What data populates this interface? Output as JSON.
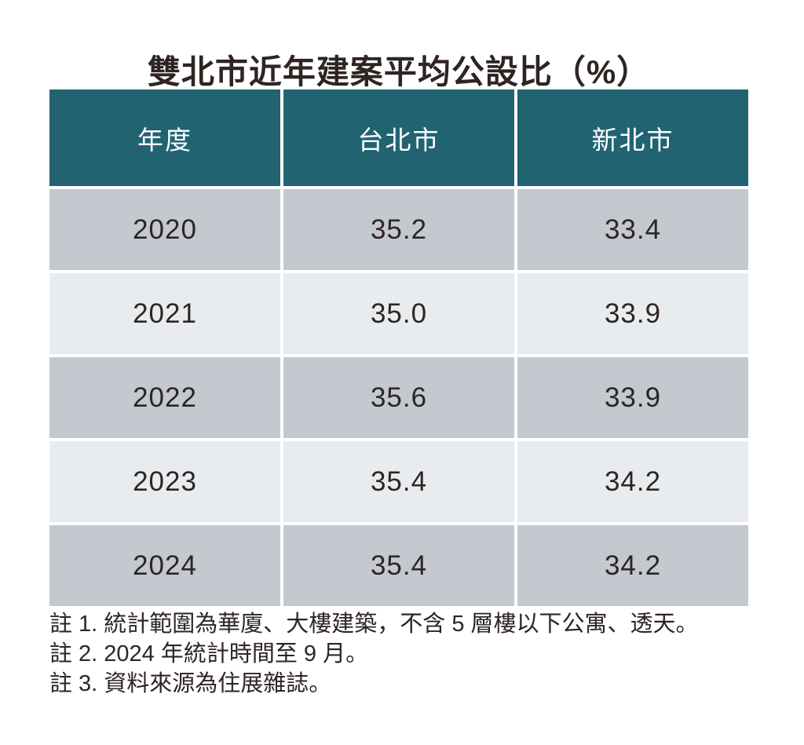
{
  "title": "雙北市近年建案平均公設比（%）",
  "table": {
    "headers": [
      "年度",
      "台北市",
      "新北市"
    ],
    "rows": [
      [
        "2020",
        "35.2",
        "33.4"
      ],
      [
        "2021",
        "35.0",
        "33.9"
      ],
      [
        "2022",
        "35.6",
        "33.9"
      ],
      [
        "2023",
        "35.4",
        "34.2"
      ],
      [
        "2024",
        "35.4",
        "34.2"
      ]
    ]
  },
  "notes": [
    "註 1. 統計範圍為華廈、大樓建築，不含 5 層樓以下公寓、透天。",
    "註 2. 2024 年統計時間至 9 月。",
    "註 3. 資料來源為住展雜誌。"
  ],
  "colors": {
    "header_bg": "#216371",
    "header_text": "#ffffff",
    "row_dark": "#c3c9ce",
    "row_light": "#e9ecef",
    "text": "#2e2523",
    "separator": "#ffffff"
  },
  "chart_data": {
    "type": "table",
    "title": "雙北市近年建案平均公設比（%）",
    "columns": [
      "年度",
      "台北市",
      "新北市"
    ],
    "categories": [
      "2020",
      "2021",
      "2022",
      "2023",
      "2024"
    ],
    "series": [
      {
        "name": "台北市",
        "values": [
          35.2,
          35.0,
          35.6,
          35.4,
          35.4
        ]
      },
      {
        "name": "新北市",
        "values": [
          33.4,
          33.9,
          33.9,
          34.2,
          34.2
        ]
      }
    ],
    "unit": "%",
    "annotations": [
      "註 1. 統計範圍為華廈、大樓建築，不含 5 層樓以下公寓、透天。",
      "註 2. 2024 年統計時間至 9 月。",
      "註 3. 資料來源為住展雜誌。"
    ]
  }
}
